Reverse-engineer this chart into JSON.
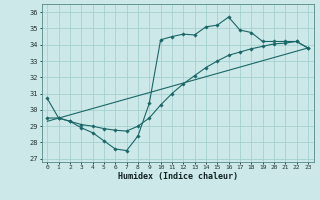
{
  "title": "",
  "xlabel": "Humidex (Indice chaleur)",
  "bg_color": "#cce8e8",
  "grid_color": "#9ecece",
  "line_color": "#1a6666",
  "xlim": [
    -0.5,
    23.5
  ],
  "ylim": [
    26.8,
    36.5
  ],
  "yticks": [
    27,
    28,
    29,
    30,
    31,
    32,
    33,
    34,
    35,
    36
  ],
  "xticks": [
    0,
    1,
    2,
    3,
    4,
    5,
    6,
    7,
    8,
    9,
    10,
    11,
    12,
    13,
    14,
    15,
    16,
    17,
    18,
    19,
    20,
    21,
    22,
    23
  ],
  "series1_y": [
    30.7,
    29.5,
    29.3,
    28.9,
    28.6,
    28.1,
    27.6,
    27.5,
    28.4,
    30.4,
    34.3,
    34.5,
    34.65,
    34.6,
    35.1,
    35.2,
    35.7,
    34.9,
    34.75,
    34.2,
    34.2,
    34.2,
    34.2,
    33.8
  ],
  "series2_y": [
    29.5,
    29.5,
    29.3,
    29.1,
    29.0,
    28.85,
    28.75,
    28.7,
    29.0,
    29.5,
    30.3,
    31.0,
    31.6,
    32.1,
    32.6,
    33.0,
    33.35,
    33.55,
    33.75,
    33.9,
    34.05,
    34.1,
    34.2,
    33.8
  ],
  "series3_x": [
    0,
    23
  ],
  "series3_y": [
    29.3,
    33.8
  ]
}
